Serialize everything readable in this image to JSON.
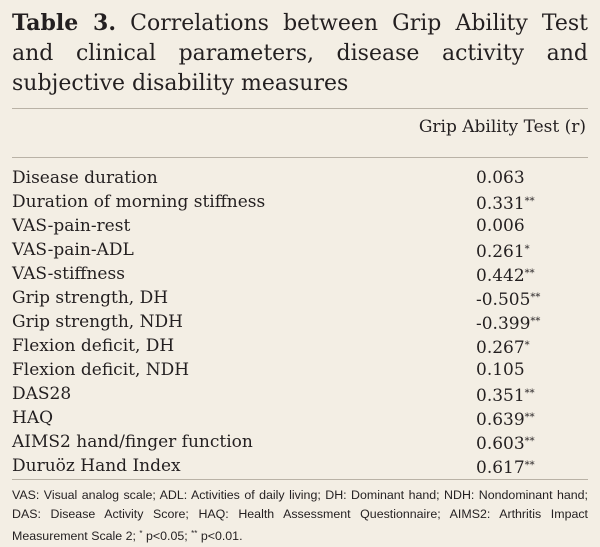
{
  "header": {
    "label": "Table 3.",
    "title": "Correlations between Grip Ability Test and clinical parameters, disease activity and subjective disability measures"
  },
  "table": {
    "column": "Grip Ability Test (r)",
    "rows": [
      {
        "label": "Disease duration",
        "value": "0.063"
      },
      {
        "label": "Duration of morning stiffness",
        "value": "0.331",
        "sig": "**"
      },
      {
        "label": "VAS-pain-rest",
        "value": "0.006"
      },
      {
        "label": "VAS-pain-ADL",
        "value": "0.261",
        "sig": "*"
      },
      {
        "label": "VAS-stiffness",
        "value": "0.442",
        "sig": "**"
      },
      {
        "label": "Grip strength, DH",
        "value": "-0.505",
        "sig": "**"
      },
      {
        "label": "Grip strength, NDH",
        "value": "-0.399",
        "sig": "**"
      },
      {
        "label": "Flexion deficit, DH",
        "value": "0.267",
        "sig": "*"
      },
      {
        "label": "Flexion deficit, NDH",
        "value": "0.105"
      },
      {
        "label": "DAS28",
        "value": "0.351",
        "sig": "**"
      },
      {
        "label": "HAQ",
        "value": "0.639",
        "sig": "**"
      },
      {
        "label": "AIMS2 hand/finger function",
        "value": "0.603",
        "sig": "**"
      },
      {
        "label": "Duruöz Hand Index",
        "value": "0.617",
        "sig": "**"
      }
    ]
  },
  "footnote": {
    "text": "VAS: Visual analog scale; ADL: Activities of daily living; DH: Dominant hand; NDH: Nondominant hand; DAS: Disease Activity Score; HAQ: Health Assessment Questionnaire; AIMS2: Arthritis Impact Measurement Scale 2;",
    "sig1": "*",
    "p1": "p<0.05;",
    "sig2": "**",
    "p2": "p<0.01."
  }
}
